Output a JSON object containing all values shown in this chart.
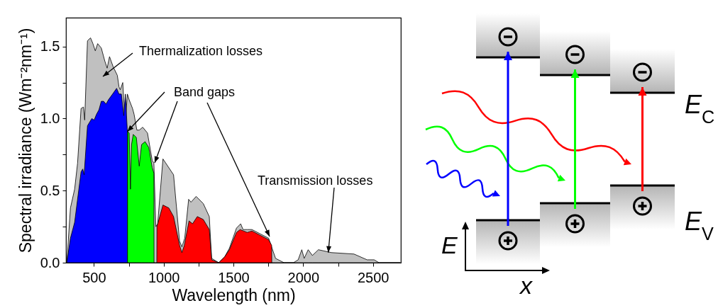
{
  "chart_data": {
    "type": "area",
    "xlabel": "Wavelength (nm)",
    "ylabel": "Spectral irradiance (Wm⁻²nm⁻¹)",
    "xlim": [
      300,
      2700
    ],
    "xticks": [
      500,
      {
        "value": 750,
        "label": null
      },
      {
        "value": 1000,
        "label": "1000"
      },
      {
        "value": 1250,
        "label": null
      },
      {
        "value": 1500,
        "label": "1500"
      },
      {
        "value": 1750,
        "label": null
      },
      {
        "value": 2000,
        "label": "2000"
      },
      {
        "value": 2250,
        "label": null
      },
      {
        "value": 2500,
        "label": "2500"
      }
    ],
    "ylim": [
      0,
      1.7
    ],
    "yticks": [
      {
        "value": 0,
        "label": "0.0"
      },
      {
        "value": 0.25,
        "label": null
      },
      0.5,
      {
        "value": 0.75,
        "label": null
      },
      {
        "value": 1,
        "label": "1.0"
      },
      {
        "value": 1.25,
        "label": null
      },
      1.5
    ],
    "series": [
      {
        "color": "#c0c0c0",
        "x": [
          306,
          332,
          362,
          383,
          408,
          425,
          434,
          454,
          476,
          493,
          510,
          527,
          553,
          578,
          595,
          612,
          638,
          668,
          680,
          689,
          707,
          724,
          740,
          753,
          777,
          788,
          808,
          825,
          850,
          884,
          918,
          930,
          944,
          957,
          995,
          1071,
          1114,
          1131,
          1151,
          1179,
          1196,
          1233,
          1284,
          1327,
          1344,
          1395,
          1437,
          1471,
          1522,
          1552,
          1569,
          1599,
          1633,
          1692,
          1752,
          1777,
          1802,
          1862,
          1930,
          1964,
          1990,
          2007,
          2036,
          2066,
          2109,
          2202,
          2364,
          2458,
          2509,
          2543,
          2696
        ],
        "values": [
          0,
          0.38,
          0.51,
          0.69,
          1.07,
          1.08,
          0.99,
          1.54,
          1.56,
          1.52,
          1.47,
          1.52,
          1.49,
          1.4,
          1.35,
          1.43,
          1.36,
          1.3,
          1.22,
          1.2,
          1.25,
          0.95,
          1.17,
          1.13,
          1.07,
          1.03,
          0.92,
          0.92,
          0.94,
          0.9,
          0.71,
          0.69,
          0.25,
          0.27,
          0.72,
          0.61,
          0.15,
          0.11,
          0.17,
          0.44,
          0.42,
          0.46,
          0.41,
          0.32,
          0.03,
          0.0,
          0.04,
          0.1,
          0.24,
          0.27,
          0.23,
          0.23,
          0.23,
          0.2,
          0.17,
          0.1,
          0.03,
          0.0,
          0,
          0.02,
          0.09,
          0.03,
          0.09,
          0.05,
          0.09,
          0.07,
          0.06,
          0.02,
          0.02,
          0,
          0
        ]
      },
      {
        "color": "#0000ff",
        "x": [
          306,
          332,
          362,
          408,
          420,
          430,
          454,
          485,
          502,
          519,
          536,
          553,
          570,
          587,
          604,
          634,
          663,
          680,
          697,
          714,
          726,
          740,
          741
        ],
        "values": [
          0,
          0.17,
          0.28,
          0.63,
          0.65,
          0.61,
          0.95,
          1.0,
          0.99,
          1.03,
          1.06,
          1.12,
          1.12,
          1.1,
          1.13,
          1.17,
          1.21,
          1.17,
          1.17,
          1.02,
          1.17,
          0.91,
          0
        ]
      },
      {
        "color": "#00ff00",
        "x": [
          741,
          742,
          753,
          762,
          770,
          782,
          804,
          825,
          842,
          867,
          893,
          918,
          930,
          931
        ],
        "values": [
          0,
          0.91,
          0.9,
          0.51,
          0.82,
          0.89,
          0.87,
          0.67,
          0.82,
          0.84,
          0.8,
          0.66,
          0.62,
          0
        ]
      },
      {
        "color": "#ff0000",
        "x": [
          951,
          952,
          995,
          1037,
          1071,
          1114,
          1131,
          1148,
          1182,
          1207,
          1241,
          1284,
          1327,
          1344,
          1395,
          1437,
          1471,
          1522,
          1548,
          1573,
          1599,
          1633,
          1692,
          1752,
          1774,
          1775
        ],
        "values": [
          0,
          0.25,
          0.4,
          0.38,
          0.32,
          0.12,
          0.07,
          0.12,
          0.29,
          0.27,
          0.32,
          0.3,
          0.23,
          0.02,
          0.0,
          0.04,
          0.09,
          0.21,
          0.23,
          0.22,
          0.21,
          0.22,
          0.19,
          0.16,
          0.12,
          0
        ]
      }
    ],
    "annotations": [
      "Thermalization losses",
      {
        "text": "Band gaps",
        "x": 740,
        "y": 0.91
      },
      {
        "text": "Transmission losses",
        "x": 2180,
        "y": 0.07
      },
      "E$_{C}$",
      "E$_{V}$",
      "E",
      "x"
    ]
  }
}
